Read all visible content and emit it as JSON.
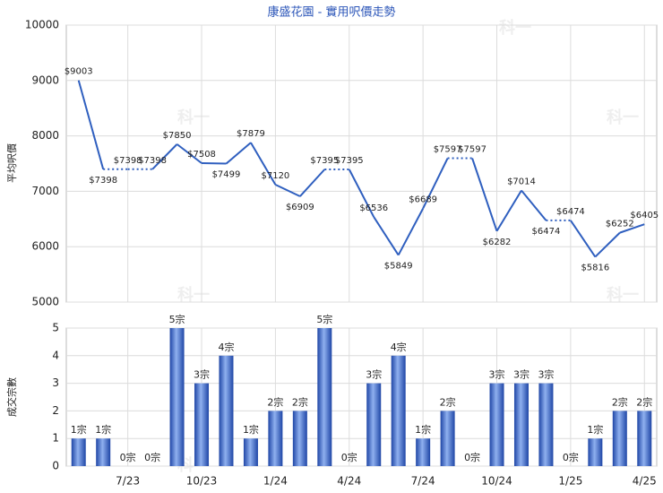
{
  "watermark": "科一",
  "chart_data": [
    {
      "type": "line",
      "title": "康盛花園 - 實用呎價走勢",
      "y_label": "平均呎價",
      "color": "#2f5fbf",
      "values": [
        9003,
        7398,
        7398,
        7398,
        7850,
        7508,
        7499,
        7879,
        7120,
        6909,
        7395,
        7395,
        6536,
        5849,
        6689,
        7597,
        7597,
        6282,
        7014,
        6474,
        6474,
        5816,
        6252,
        6405
      ],
      "value_labels": [
        "$9003",
        "$7398",
        "$7398",
        "$7398",
        "$7850",
        "$7508",
        "$7499",
        "$7879",
        "$7120",
        "$6909",
        "$7395",
        "$7395",
        "$6536",
        "$5849",
        "$6689",
        "$7597",
        "$7597",
        "$6282",
        "$7014",
        "$6474",
        "$6474",
        "$5816",
        "$6252",
        "$6405"
      ],
      "ylim": [
        5000,
        10000
      ],
      "yticks": [
        5000,
        6000,
        7000,
        8000,
        9000,
        10000
      ],
      "grid": true
    },
    {
      "type": "bar",
      "y_label": "成交宗數",
      "color": "#3a66c8",
      "categories": [
        null,
        null,
        "7/23",
        null,
        null,
        "10/23",
        null,
        null,
        "1/24",
        null,
        null,
        "4/24",
        null,
        null,
        "7/24",
        null,
        null,
        "10/24",
        null,
        null,
        "1/25",
        null,
        null,
        "4/25"
      ],
      "values": [
        1,
        1,
        0,
        0,
        5,
        3,
        4,
        1,
        2,
        2,
        5,
        0,
        3,
        4,
        1,
        2,
        0,
        3,
        3,
        3,
        0,
        1,
        2,
        2
      ],
      "value_labels": [
        "1宗",
        "1宗",
        "0宗",
        "0宗",
        "5宗",
        "3宗",
        "4宗",
        "1宗",
        "2宗",
        "2宗",
        "5宗",
        "0宗",
        "3宗",
        "4宗",
        "1宗",
        "2宗",
        "0宗",
        "3宗",
        "3宗",
        "3宗",
        "0宗",
        "1宗",
        "2宗",
        "2宗"
      ],
      "ylim": [
        0,
        5
      ],
      "yticks": [
        0,
        1,
        2,
        3,
        4,
        5
      ],
      "grid": true
    }
  ]
}
